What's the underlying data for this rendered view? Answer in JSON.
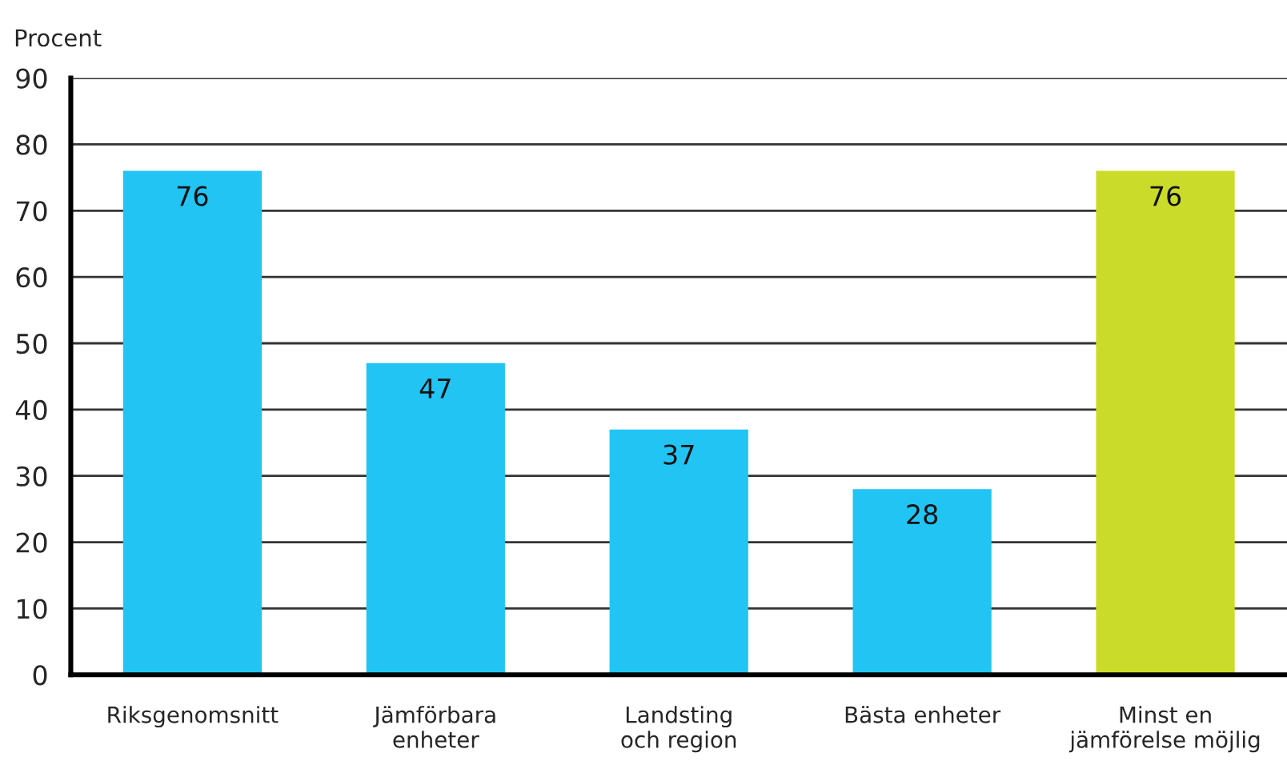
{
  "chart_data": {
    "type": "bar",
    "ylabel": "Procent",
    "categories": [
      "Riksgenomsnitt",
      "Jämförbara\nenheter",
      "Landsting\noch region",
      "Bästa enheter",
      "Minst en\njämförelse möjlig"
    ],
    "values": [
      76,
      47,
      37,
      28,
      76
    ],
    "colors": [
      "#21c4f3",
      "#21c4f3",
      "#21c4f3",
      "#21c4f3",
      "#cbdb2a"
    ],
    "ylim": [
      0,
      90
    ],
    "yticks": [
      0,
      10,
      20,
      30,
      40,
      50,
      60,
      70,
      80,
      90
    ],
    "grid": "y",
    "data_labels": true
  }
}
